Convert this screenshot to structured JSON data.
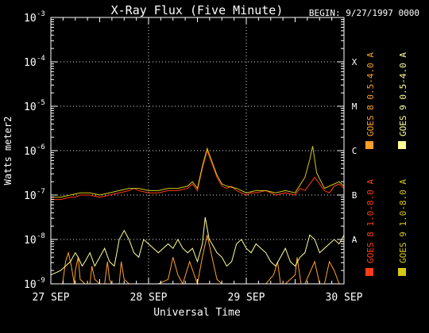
{
  "chart_data": {
    "type": "line",
    "title": "X-Ray Flux (Five Minute)",
    "begin_label": "BEGIN: 9/27/1997 0000",
    "xlabel": "Universal Time",
    "ylabel": "Watts meter2",
    "yscale": "log",
    "ylim_exp": [
      -9,
      -3
    ],
    "xlim_days": [
      0,
      3
    ],
    "x_ticks": [
      {
        "label": "27 SEP",
        "day": 0
      },
      {
        "label": "28 SEP",
        "day": 1
      },
      {
        "label": "29 SEP",
        "day": 2
      },
      {
        "label": "30 SEP",
        "day": 3
      }
    ],
    "y_ticks": [
      {
        "base": "10",
        "exp": "-9",
        "value": -9
      },
      {
        "base": "10",
        "exp": "-8",
        "value": -8
      },
      {
        "base": "10",
        "exp": "-7",
        "value": -7
      },
      {
        "base": "10",
        "exp": "-6",
        "value": -6
      },
      {
        "base": "10",
        "exp": "-5",
        "value": -5
      },
      {
        "base": "10",
        "exp": "-4",
        "value": -4
      },
      {
        "base": "10",
        "exp": "-3",
        "value": -3
      }
    ],
    "flare_classes": [
      {
        "label": "X",
        "value": -4
      },
      {
        "label": "M",
        "value": -5
      },
      {
        "label": "C",
        "value": -6
      },
      {
        "label": "B",
        "value": -7
      },
      {
        "label": "A",
        "value": -8
      }
    ],
    "grid": "dotted, at flare class levels and day boundaries",
    "legend": {
      "placement": "right, vertical",
      "entries": [
        {
          "label": "GOES 8 1.0-8.0 A",
          "color": "#ff3c14"
        },
        {
          "label": "GOES 8 0.5-4.0 A",
          "color": "#ffa028"
        },
        {
          "label": "GOES 9 1.0-8.0 A",
          "color": "#d7c814"
        },
        {
          "label": "GOES 9 0.5-4.0 A",
          "color": "#ffff96"
        }
      ]
    },
    "series": [
      {
        "name": "GOES 8 1.0-8.0 A",
        "color": "#ff3c14",
        "x": [
          0,
          0.1,
          0.2,
          0.25,
          0.3,
          0.4,
          0.5,
          0.6,
          0.7,
          0.8,
          0.85,
          0.9,
          1.0,
          1.1,
          1.2,
          1.3,
          1.4,
          1.45,
          1.5,
          1.55,
          1.6,
          1.65,
          1.7,
          1.75,
          1.8,
          1.85,
          1.9,
          2.0,
          2.05,
          2.1,
          2.2,
          2.3,
          2.4,
          2.5,
          2.55,
          2.6,
          2.7,
          2.8,
          2.85,
          2.9,
          2.95,
          3.0
        ],
        "y": [
          -7.1,
          -7.1,
          -7.05,
          -7.05,
          -7.0,
          -7.0,
          -7.05,
          -7.0,
          -6.95,
          -6.9,
          -6.85,
          -6.9,
          -6.95,
          -6.95,
          -6.9,
          -6.9,
          -6.85,
          -6.75,
          -6.9,
          -6.4,
          -6.0,
          -6.3,
          -6.6,
          -6.8,
          -6.85,
          -6.8,
          -6.9,
          -7.0,
          -6.95,
          -6.95,
          -6.9,
          -7.0,
          -6.95,
          -7.0,
          -6.85,
          -6.9,
          -6.6,
          -6.9,
          -6.95,
          -6.8,
          -6.75,
          -6.85
        ]
      },
      {
        "name": "GOES 8 0.5-4.0 A",
        "color": "#ffa028",
        "x": [
          0.0,
          0.12,
          0.15,
          0.18,
          0.21,
          0.24,
          0.25,
          0.28,
          0.3,
          0.35,
          0.4,
          0.42,
          0.45,
          0.5,
          0.55,
          0.58,
          0.6,
          0.62,
          0.7,
          0.72,
          0.75,
          0.8,
          0.9,
          1.0,
          1.1,
          1.2,
          1.25,
          1.3,
          1.35,
          1.42,
          1.5,
          1.55,
          1.6,
          1.65,
          1.7,
          1.75,
          1.8,
          1.9,
          2.0,
          2.1,
          2.2,
          2.28,
          2.32,
          2.35,
          2.4,
          2.5,
          2.52,
          2.56,
          2.6,
          2.7,
          2.75,
          2.8,
          2.85,
          2.9,
          2.95,
          3.0
        ],
        "y": [
          -9.0,
          -9.0,
          -8.5,
          -8.3,
          -8.6,
          -9.0,
          -8.7,
          -8.4,
          -8.9,
          -9.0,
          -9.0,
          -8.6,
          -8.9,
          -9.0,
          -9.0,
          -8.5,
          -8.9,
          -9.0,
          -9.0,
          -8.5,
          -8.9,
          -9.0,
          -9.0,
          -9.0,
          -9.0,
          -8.9,
          -8.4,
          -8.8,
          -9.0,
          -8.5,
          -9.0,
          -8.4,
          -7.9,
          -8.4,
          -8.9,
          -9.0,
          -9.0,
          -9.0,
          -9.0,
          -9.0,
          -9.0,
          -8.8,
          -8.5,
          -9.0,
          -9.0,
          -8.8,
          -8.4,
          -9.0,
          -9.0,
          -8.5,
          -9.0,
          -9.0,
          -8.5,
          -8.7,
          -9.0,
          -9.0
        ]
      },
      {
        "name": "GOES 9 1.0-8.0 A",
        "color": "#d7c814",
        "x": [
          0,
          0.1,
          0.2,
          0.3,
          0.4,
          0.5,
          0.6,
          0.7,
          0.8,
          0.9,
          1.0,
          1.1,
          1.2,
          1.3,
          1.4,
          1.45,
          1.5,
          1.55,
          1.6,
          1.65,
          1.7,
          1.75,
          1.8,
          1.9,
          2.0,
          2.1,
          2.2,
          2.3,
          2.4,
          2.5,
          2.6,
          2.65,
          2.68,
          2.72,
          2.8,
          2.9,
          2.95,
          3.0
        ],
        "y": [
          -7.05,
          -7.05,
          -7.0,
          -6.95,
          -6.95,
          -7.0,
          -6.95,
          -6.9,
          -6.85,
          -6.85,
          -6.9,
          -6.9,
          -6.85,
          -6.85,
          -6.8,
          -6.7,
          -6.85,
          -6.35,
          -5.95,
          -6.25,
          -6.55,
          -6.75,
          -6.8,
          -6.85,
          -6.95,
          -6.9,
          -6.9,
          -6.95,
          -6.9,
          -6.95,
          -6.6,
          -6.2,
          -5.9,
          -6.5,
          -6.85,
          -6.75,
          -6.7,
          -6.8
        ]
      },
      {
        "name": "GOES 9 0.5-4.0 A",
        "color": "#ffff96",
        "x": [
          0.0,
          0.1,
          0.2,
          0.25,
          0.28,
          0.32,
          0.35,
          0.4,
          0.45,
          0.5,
          0.55,
          0.6,
          0.65,
          0.7,
          0.75,
          0.8,
          0.85,
          0.9,
          0.95,
          1.0,
          1.05,
          1.1,
          1.15,
          1.2,
          1.25,
          1.3,
          1.35,
          1.4,
          1.45,
          1.5,
          1.55,
          1.58,
          1.62,
          1.65,
          1.7,
          1.75,
          1.8,
          1.85,
          1.9,
          1.95,
          2.0,
          2.05,
          2.1,
          2.15,
          2.2,
          2.25,
          2.3,
          2.35,
          2.4,
          2.45,
          2.5,
          2.55,
          2.6,
          2.65,
          2.7,
          2.75,
          2.8,
          2.85,
          2.9,
          2.95,
          3.0
        ],
        "y": [
          -8.8,
          -8.7,
          -8.5,
          -8.3,
          -8.4,
          -8.6,
          -8.5,
          -8.3,
          -8.6,
          -8.4,
          -8.2,
          -8.5,
          -8.6,
          -8.0,
          -7.8,
          -8.0,
          -8.3,
          -8.4,
          -8.0,
          -8.1,
          -8.2,
          -8.3,
          -8.2,
          -8.1,
          -8.2,
          -8.0,
          -8.2,
          -8.3,
          -8.2,
          -8.5,
          -8.1,
          -7.5,
          -8.0,
          -8.1,
          -8.3,
          -8.4,
          -8.6,
          -8.5,
          -8.1,
          -8.0,
          -8.2,
          -8.3,
          -8.1,
          -8.2,
          -8.3,
          -8.5,
          -8.6,
          -8.4,
          -8.2,
          -8.5,
          -8.6,
          -8.4,
          -8.3,
          -7.9,
          -8.0,
          -8.3,
          -8.2,
          -8.1,
          -8.0,
          -8.1,
          -7.9
        ]
      }
    ]
  }
}
